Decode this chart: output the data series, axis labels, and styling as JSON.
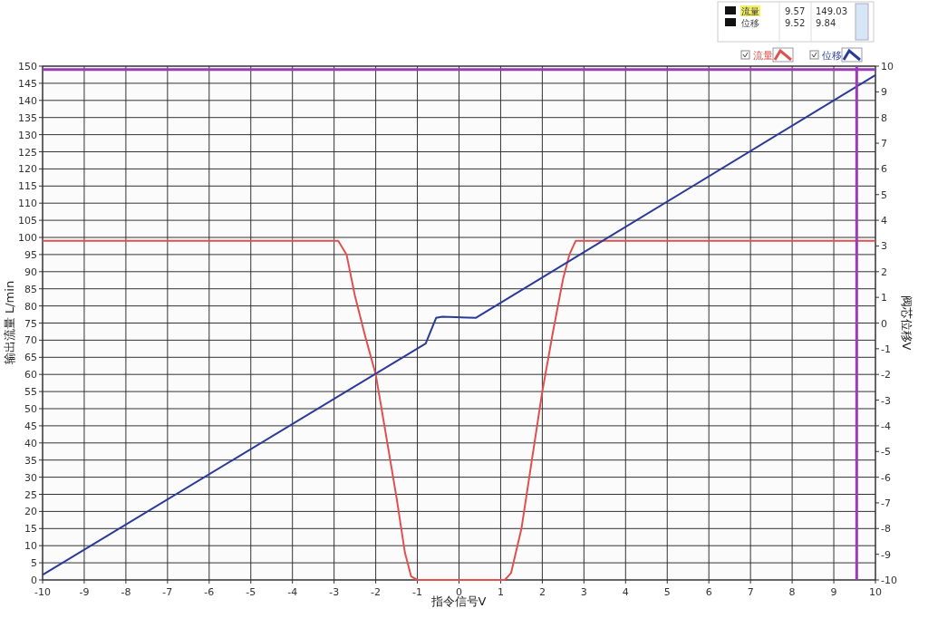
{
  "chart_data": {
    "type": "line",
    "xlabel": "指令信号V",
    "ylabel": "输出流量 L/min",
    "y2label": "阀芯位移V",
    "xlim": [
      -10,
      10
    ],
    "xticks": [
      -10,
      -9,
      -8,
      -7,
      -6,
      -5,
      -4,
      -3,
      -2,
      -1,
      0,
      1,
      2,
      3,
      4,
      5,
      6,
      7,
      8,
      9,
      10
    ],
    "ylim": [
      0,
      150
    ],
    "yticks": [
      0,
      5,
      10,
      15,
      20,
      25,
      30,
      35,
      40,
      45,
      50,
      55,
      60,
      65,
      70,
      75,
      80,
      85,
      90,
      95,
      100,
      105,
      110,
      115,
      120,
      125,
      130,
      135,
      140,
      145,
      150
    ],
    "y2lim": [
      -10,
      10
    ],
    "y2ticks": [
      -10,
      -9,
      -8,
      -7,
      -6,
      -5,
      -4,
      -3,
      -2,
      -1,
      0,
      1,
      2,
      3,
      4,
      5,
      6,
      7,
      8,
      9,
      10
    ],
    "grid": true,
    "legend": "top right",
    "line_style": "solid",
    "marker": "none",
    "series": [
      {
        "name": "流量",
        "color": "#e05050",
        "x": [
          -10,
          -2.9,
          -2.7,
          -2.5,
          -2.25,
          -2,
          -1.75,
          -1.5,
          -1.3,
          -1.15,
          -1,
          1.1,
          1.25,
          1.5,
          1.75,
          2,
          2.25,
          2.5,
          2.65,
          2.8,
          10
        ],
        "values": [
          99,
          99,
          95,
          83,
          71,
          60,
          42,
          24,
          8,
          1,
          0,
          0,
          2,
          15,
          35,
          55,
          72,
          88,
          95,
          99,
          99
        ]
      },
      {
        "name": "位移",
        "color": "#2a3a9a",
        "axis": "y2",
        "x": [
          -10,
          -0.8,
          -0.55,
          -0.4,
          0.4,
          10
        ],
        "values": [
          -9.8,
          -0.8,
          0.2,
          0.25,
          0.2,
          9.65
        ]
      }
    ],
    "ref_lines": [
      {
        "axis": "x",
        "value": 9.55,
        "color": "#9b3bb5"
      },
      {
        "axis": "y",
        "value": 149,
        "color": "#9b3bb5"
      }
    ],
    "annotations": [
      "流量",
      "9.57",
      "149.03",
      "位移",
      "9.52",
      "9.84"
    ]
  }
}
